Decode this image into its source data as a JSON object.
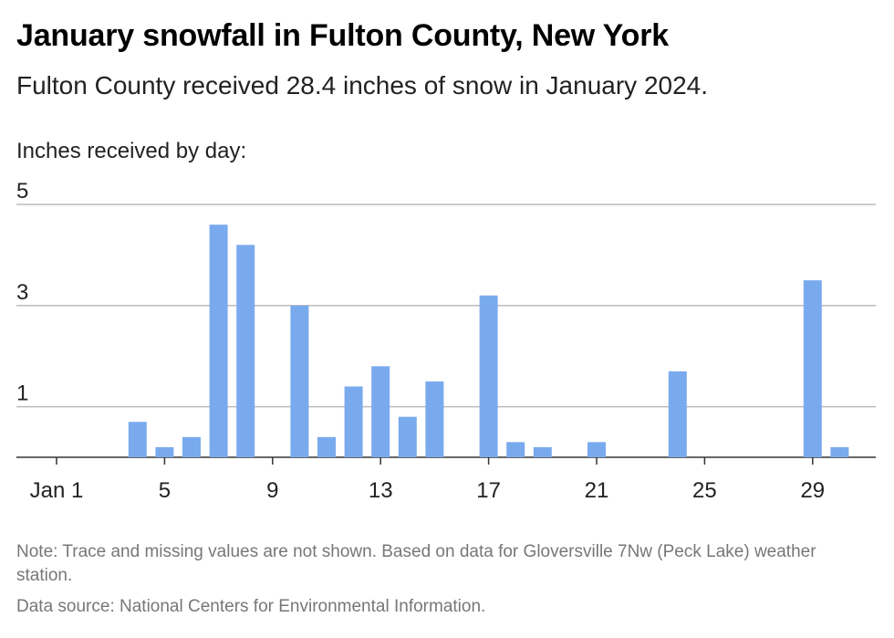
{
  "title": "January snowfall in Fulton County, New York",
  "subtitle": "Fulton County received 28.4 inches of snow in January 2024.",
  "note": "Note: Trace and missing values are not shown. Based on data for Gloversville 7Nw (Peck Lake) weather station.",
  "source": "Data source: National Centers for Environmental Information.",
  "chart_data": {
    "type": "bar",
    "ylabel": "Inches received by day:",
    "x": [
      4,
      5,
      6,
      7,
      8,
      10,
      11,
      12,
      13,
      14,
      15,
      17,
      18,
      19,
      21,
      24,
      29,
      30
    ],
    "values": [
      0.7,
      0.2,
      0.4,
      4.6,
      4.2,
      3.0,
      0.4,
      1.4,
      1.8,
      0.8,
      1.5,
      3.2,
      0.3,
      0.2,
      0.3,
      1.7,
      3.5,
      0.2
    ],
    "xlim": [
      1,
      31
    ],
    "ylim": [
      0,
      5
    ],
    "y_ticks": [
      1,
      3,
      5
    ],
    "x_ticks": [
      {
        "value": 1,
        "label": "Jan 1"
      },
      {
        "value": 5,
        "label": "5"
      },
      {
        "value": 9,
        "label": "9"
      },
      {
        "value": 13,
        "label": "13"
      },
      {
        "value": 17,
        "label": "17"
      },
      {
        "value": 21,
        "label": "21"
      },
      {
        "value": 25,
        "label": "25"
      },
      {
        "value": 29,
        "label": "29"
      }
    ],
    "grid": true,
    "bar_color": "#7aaaee",
    "grid_color": "#bbbbbb"
  }
}
